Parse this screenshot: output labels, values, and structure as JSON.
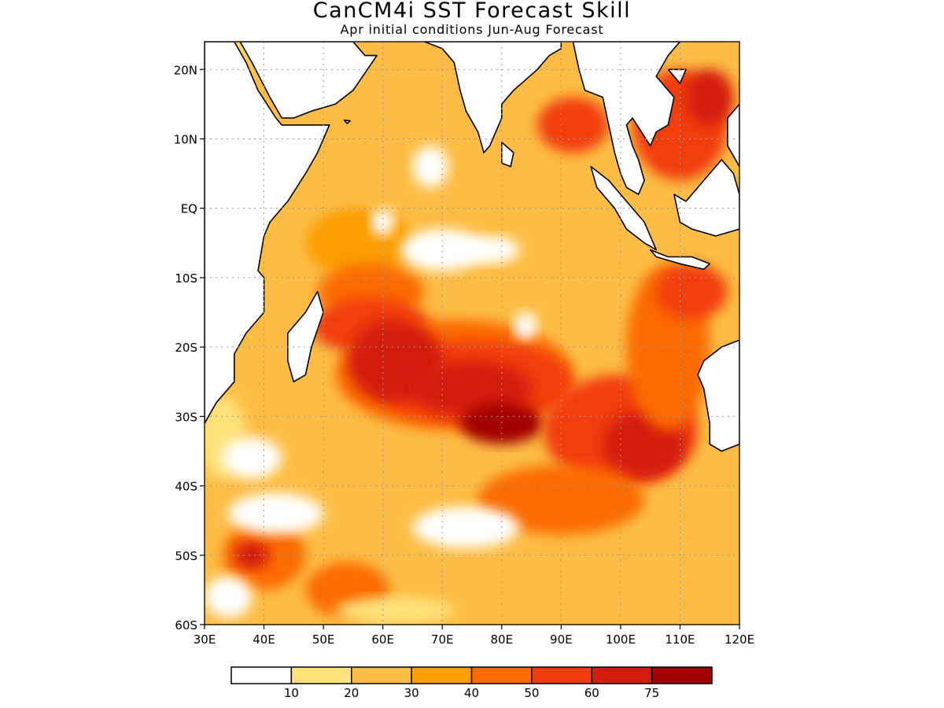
{
  "title": "CanCM4i SST Forecast Skill",
  "subtitle": "Apr initial conditions  Jun-Aug Forecast",
  "map": {
    "projection": "cylindrical equidistant",
    "lon_range": [
      30,
      120
    ],
    "lat_range": [
      -60,
      24
    ],
    "grid": "dotted",
    "lat_ticks": [
      {
        "lat": 20,
        "label": "20N"
      },
      {
        "lat": 10,
        "label": "10N"
      },
      {
        "lat": 0,
        "label": "EQ"
      },
      {
        "lat": -10,
        "label": "10S"
      },
      {
        "lat": -20,
        "label": "20S"
      },
      {
        "lat": -30,
        "label": "30S"
      },
      {
        "lat": -40,
        "label": "40S"
      },
      {
        "lat": -50,
        "label": "50S"
      },
      {
        "lat": -60,
        "label": "60S"
      }
    ],
    "lon_ticks": [
      {
        "lon": 30,
        "label": "30E"
      },
      {
        "lon": 40,
        "label": "40E"
      },
      {
        "lon": 50,
        "label": "50E"
      },
      {
        "lon": 60,
        "label": "60E"
      },
      {
        "lon": 70,
        "label": "70E"
      },
      {
        "lon": 80,
        "label": "80E"
      },
      {
        "lon": 90,
        "label": "90E"
      },
      {
        "lon": 100,
        "label": "100E"
      },
      {
        "lon": 110,
        "label": "110E"
      },
      {
        "lon": 120,
        "label": "120E"
      }
    ]
  },
  "colorbar": {
    "colors": [
      "#ffffff",
      "#ffe27a",
      "#fdbd44",
      "#fc9d00",
      "#fc6a00",
      "#f23c0c",
      "#d41c0c",
      "#a30000"
    ],
    "labels": [
      "10",
      "20",
      "30",
      "40",
      "50",
      "60",
      "75"
    ]
  },
  "colors": {
    "land": "#ffffff",
    "coastline": "#000000",
    "frame": "#000000",
    "grid": "#9a9a9a"
  },
  "field": {
    "background_level": 2,
    "patches": [
      {
        "lon": 34,
        "lat": 10,
        "rx": 4,
        "ry": 16,
        "level": 1
      },
      {
        "lon": 33,
        "lat": -33,
        "rx": 4,
        "ry": 6,
        "level": 1
      },
      {
        "lon": 56,
        "lat": -5,
        "rx": 9,
        "ry": 5,
        "level": 3
      },
      {
        "lon": 58,
        "lat": -12,
        "rx": 9,
        "ry": 4,
        "level": 4
      },
      {
        "lon": 58,
        "lat": -17,
        "rx": 10,
        "ry": 4,
        "level": 5
      },
      {
        "lon": 72,
        "lat": -24,
        "rx": 20,
        "ry": 8,
        "level": 4
      },
      {
        "lon": 75,
        "lat": -25,
        "rx": 17,
        "ry": 6,
        "level": 5
      },
      {
        "lon": 62,
        "lat": -22,
        "rx": 8,
        "ry": 6,
        "level": 6
      },
      {
        "lon": 75,
        "lat": -26,
        "rx": 10,
        "ry": 4,
        "level": 6
      },
      {
        "lon": 80,
        "lat": -31,
        "rx": 7,
        "ry": 3,
        "level": 7
      },
      {
        "lon": 100,
        "lat": -32,
        "rx": 13,
        "ry": 8,
        "level": 5
      },
      {
        "lon": 104,
        "lat": -34,
        "rx": 7,
        "ry": 5,
        "level": 6
      },
      {
        "lon": 108,
        "lat": -20,
        "rx": 7,
        "ry": 12,
        "level": 4
      },
      {
        "lon": 112,
        "lat": -12,
        "rx": 6,
        "ry": 4,
        "level": 5
      },
      {
        "lon": 90,
        "lat": -42,
        "rx": 14,
        "ry": 5,
        "level": 4
      },
      {
        "lon": 92,
        "lat": 12,
        "rx": 6,
        "ry": 4,
        "level": 5
      },
      {
        "lon": 110,
        "lat": 12,
        "rx": 8,
        "ry": 8,
        "level": 5
      },
      {
        "lon": 115,
        "lat": 16,
        "rx": 4,
        "ry": 4,
        "level": 6
      },
      {
        "lon": 40,
        "lat": -50,
        "rx": 7,
        "ry": 5,
        "level": 4
      },
      {
        "lon": 38,
        "lat": -50,
        "rx": 3,
        "ry": 2,
        "level": 6
      },
      {
        "lon": 54,
        "lat": -55,
        "rx": 7,
        "ry": 4,
        "level": 4
      },
      {
        "lon": 70,
        "lat": -6,
        "rx": 7,
        "ry": 3,
        "level": 0
      },
      {
        "lon": 78,
        "lat": -6,
        "rx": 5,
        "ry": 2,
        "level": 0
      },
      {
        "lon": 84,
        "lat": -17,
        "rx": 2,
        "ry": 2,
        "level": 0
      },
      {
        "lon": 38,
        "lat": -36,
        "rx": 5,
        "ry": 3,
        "level": 0
      },
      {
        "lon": 42,
        "lat": -44,
        "rx": 8,
        "ry": 3,
        "level": 0
      },
      {
        "lon": 74,
        "lat": -46,
        "rx": 9,
        "ry": 3,
        "level": 0
      },
      {
        "lon": 68,
        "lat": 6,
        "rx": 3,
        "ry": 3,
        "level": 0
      },
      {
        "lon": 60,
        "lat": -2,
        "rx": 2,
        "ry": 2,
        "level": 0
      },
      {
        "lon": 34,
        "lat": -56,
        "rx": 4,
        "ry": 3,
        "level": 0
      },
      {
        "lon": 62,
        "lat": -58,
        "rx": 10,
        "ry": 2,
        "level": 1
      }
    ]
  },
  "land": [
    {
      "name": "africa",
      "points": [
        [
          30,
          24
        ],
        [
          35,
          24
        ],
        [
          37,
          21
        ],
        [
          39,
          17
        ],
        [
          42,
          13
        ],
        [
          43,
          12
        ],
        [
          51,
          12
        ],
        [
          49,
          8
        ],
        [
          47,
          5
        ],
        [
          44,
          1
        ],
        [
          41,
          -2
        ],
        [
          40,
          -4
        ],
        [
          39,
          -9
        ],
        [
          40,
          -10
        ],
        [
          40,
          -15
        ],
        [
          37,
          -18
        ],
        [
          35,
          -21
        ],
        [
          35,
          -25
        ],
        [
          32,
          -28
        ],
        [
          30,
          -31
        ]
      ]
    },
    {
      "name": "arabia",
      "points": [
        [
          36,
          24
        ],
        [
          43,
          24
        ],
        [
          55,
          24
        ],
        [
          57,
          22
        ],
        [
          59,
          22
        ],
        [
          55,
          17
        ],
        [
          52,
          15
        ],
        [
          48,
          14
        ],
        [
          45,
          13
        ],
        [
          43,
          13
        ],
        [
          41,
          16
        ],
        [
          38,
          21
        ]
      ]
    },
    {
      "name": "india",
      "points": [
        [
          67,
          24
        ],
        [
          70,
          23
        ],
        [
          72,
          21
        ],
        [
          73,
          17
        ],
        [
          74,
          14
        ],
        [
          76,
          11
        ],
        [
          77,
          8
        ],
        [
          78,
          9
        ],
        [
          80,
          13
        ],
        [
          80,
          15
        ],
        [
          82,
          17
        ],
        [
          86,
          20
        ],
        [
          88,
          22
        ],
        [
          90,
          23
        ],
        [
          90,
          24
        ]
      ]
    },
    {
      "name": "sri-lanka",
      "points": [
        [
          80,
          9.5
        ],
        [
          82,
          8
        ],
        [
          81.5,
          6
        ],
        [
          80,
          6.5
        ]
      ]
    },
    {
      "name": "madagascar",
      "points": [
        [
          49,
          -12
        ],
        [
          50,
          -15
        ],
        [
          48,
          -20
        ],
        [
          47,
          -24
        ],
        [
          45,
          -25
        ],
        [
          44,
          -22
        ],
        [
          44,
          -18
        ],
        [
          47,
          -15
        ]
      ]
    },
    {
      "name": "indochina",
      "points": [
        [
          92,
          24
        ],
        [
          93,
          20
        ],
        [
          94,
          17
        ],
        [
          97,
          16
        ],
        [
          98,
          12
        ],
        [
          99,
          8
        ],
        [
          100,
          5
        ],
        [
          101,
          3
        ],
        [
          103,
          2
        ],
        [
          104,
          4
        ],
        [
          103,
          7
        ],
        [
          102,
          9
        ],
        [
          101,
          12
        ],
        [
          102,
          13
        ],
        [
          105,
          9
        ],
        [
          106,
          11
        ],
        [
          108,
          12
        ],
        [
          109,
          16
        ],
        [
          106,
          19
        ],
        [
          108,
          22
        ],
        [
          110,
          24
        ]
      ]
    },
    {
      "name": "sumatra",
      "points": [
        [
          95,
          6
        ],
        [
          98,
          4
        ],
        [
          101,
          1
        ],
        [
          104,
          -2
        ],
        [
          106,
          -6
        ],
        [
          104,
          -5
        ],
        [
          101,
          -3
        ],
        [
          99,
          0
        ],
        [
          96,
          3
        ]
      ]
    },
    {
      "name": "java",
      "points": [
        [
          105,
          -6
        ],
        [
          108,
          -7
        ],
        [
          112,
          -7
        ],
        [
          115,
          -8
        ],
        [
          114,
          -8.8
        ],
        [
          110,
          -8
        ],
        [
          106,
          -7
        ]
      ]
    },
    {
      "name": "borneo",
      "points": [
        [
          109,
          2
        ],
        [
          111,
          1
        ],
        [
          114,
          4
        ],
        [
          117,
          7
        ],
        [
          119,
          5
        ],
        [
          120,
          2
        ],
        [
          120,
          -3
        ],
        [
          116,
          -4
        ],
        [
          112,
          -3
        ],
        [
          110,
          -2
        ]
      ]
    },
    {
      "name": "australia",
      "points": [
        [
          114,
          -22
        ],
        [
          117,
          -20
        ],
        [
          120,
          -19
        ],
        [
          120,
          -34
        ],
        [
          117,
          -35
        ],
        [
          115,
          -34
        ],
        [
          115,
          -31
        ],
        [
          114,
          -26
        ],
        [
          113,
          -24
        ]
      ]
    },
    {
      "name": "philippines",
      "points": [
        [
          118,
          13
        ],
        [
          120,
          15
        ],
        [
          120,
          6
        ],
        [
          118,
          9
        ]
      ]
    },
    {
      "name": "hainan",
      "points": [
        [
          108,
          20
        ],
        [
          111,
          20
        ],
        [
          110,
          18
        ]
      ]
    },
    {
      "name": "socotra",
      "points": [
        [
          53.5,
          12.7
        ],
        [
          54.5,
          12.6
        ],
        [
          54,
          12.2
        ]
      ]
    }
  ]
}
